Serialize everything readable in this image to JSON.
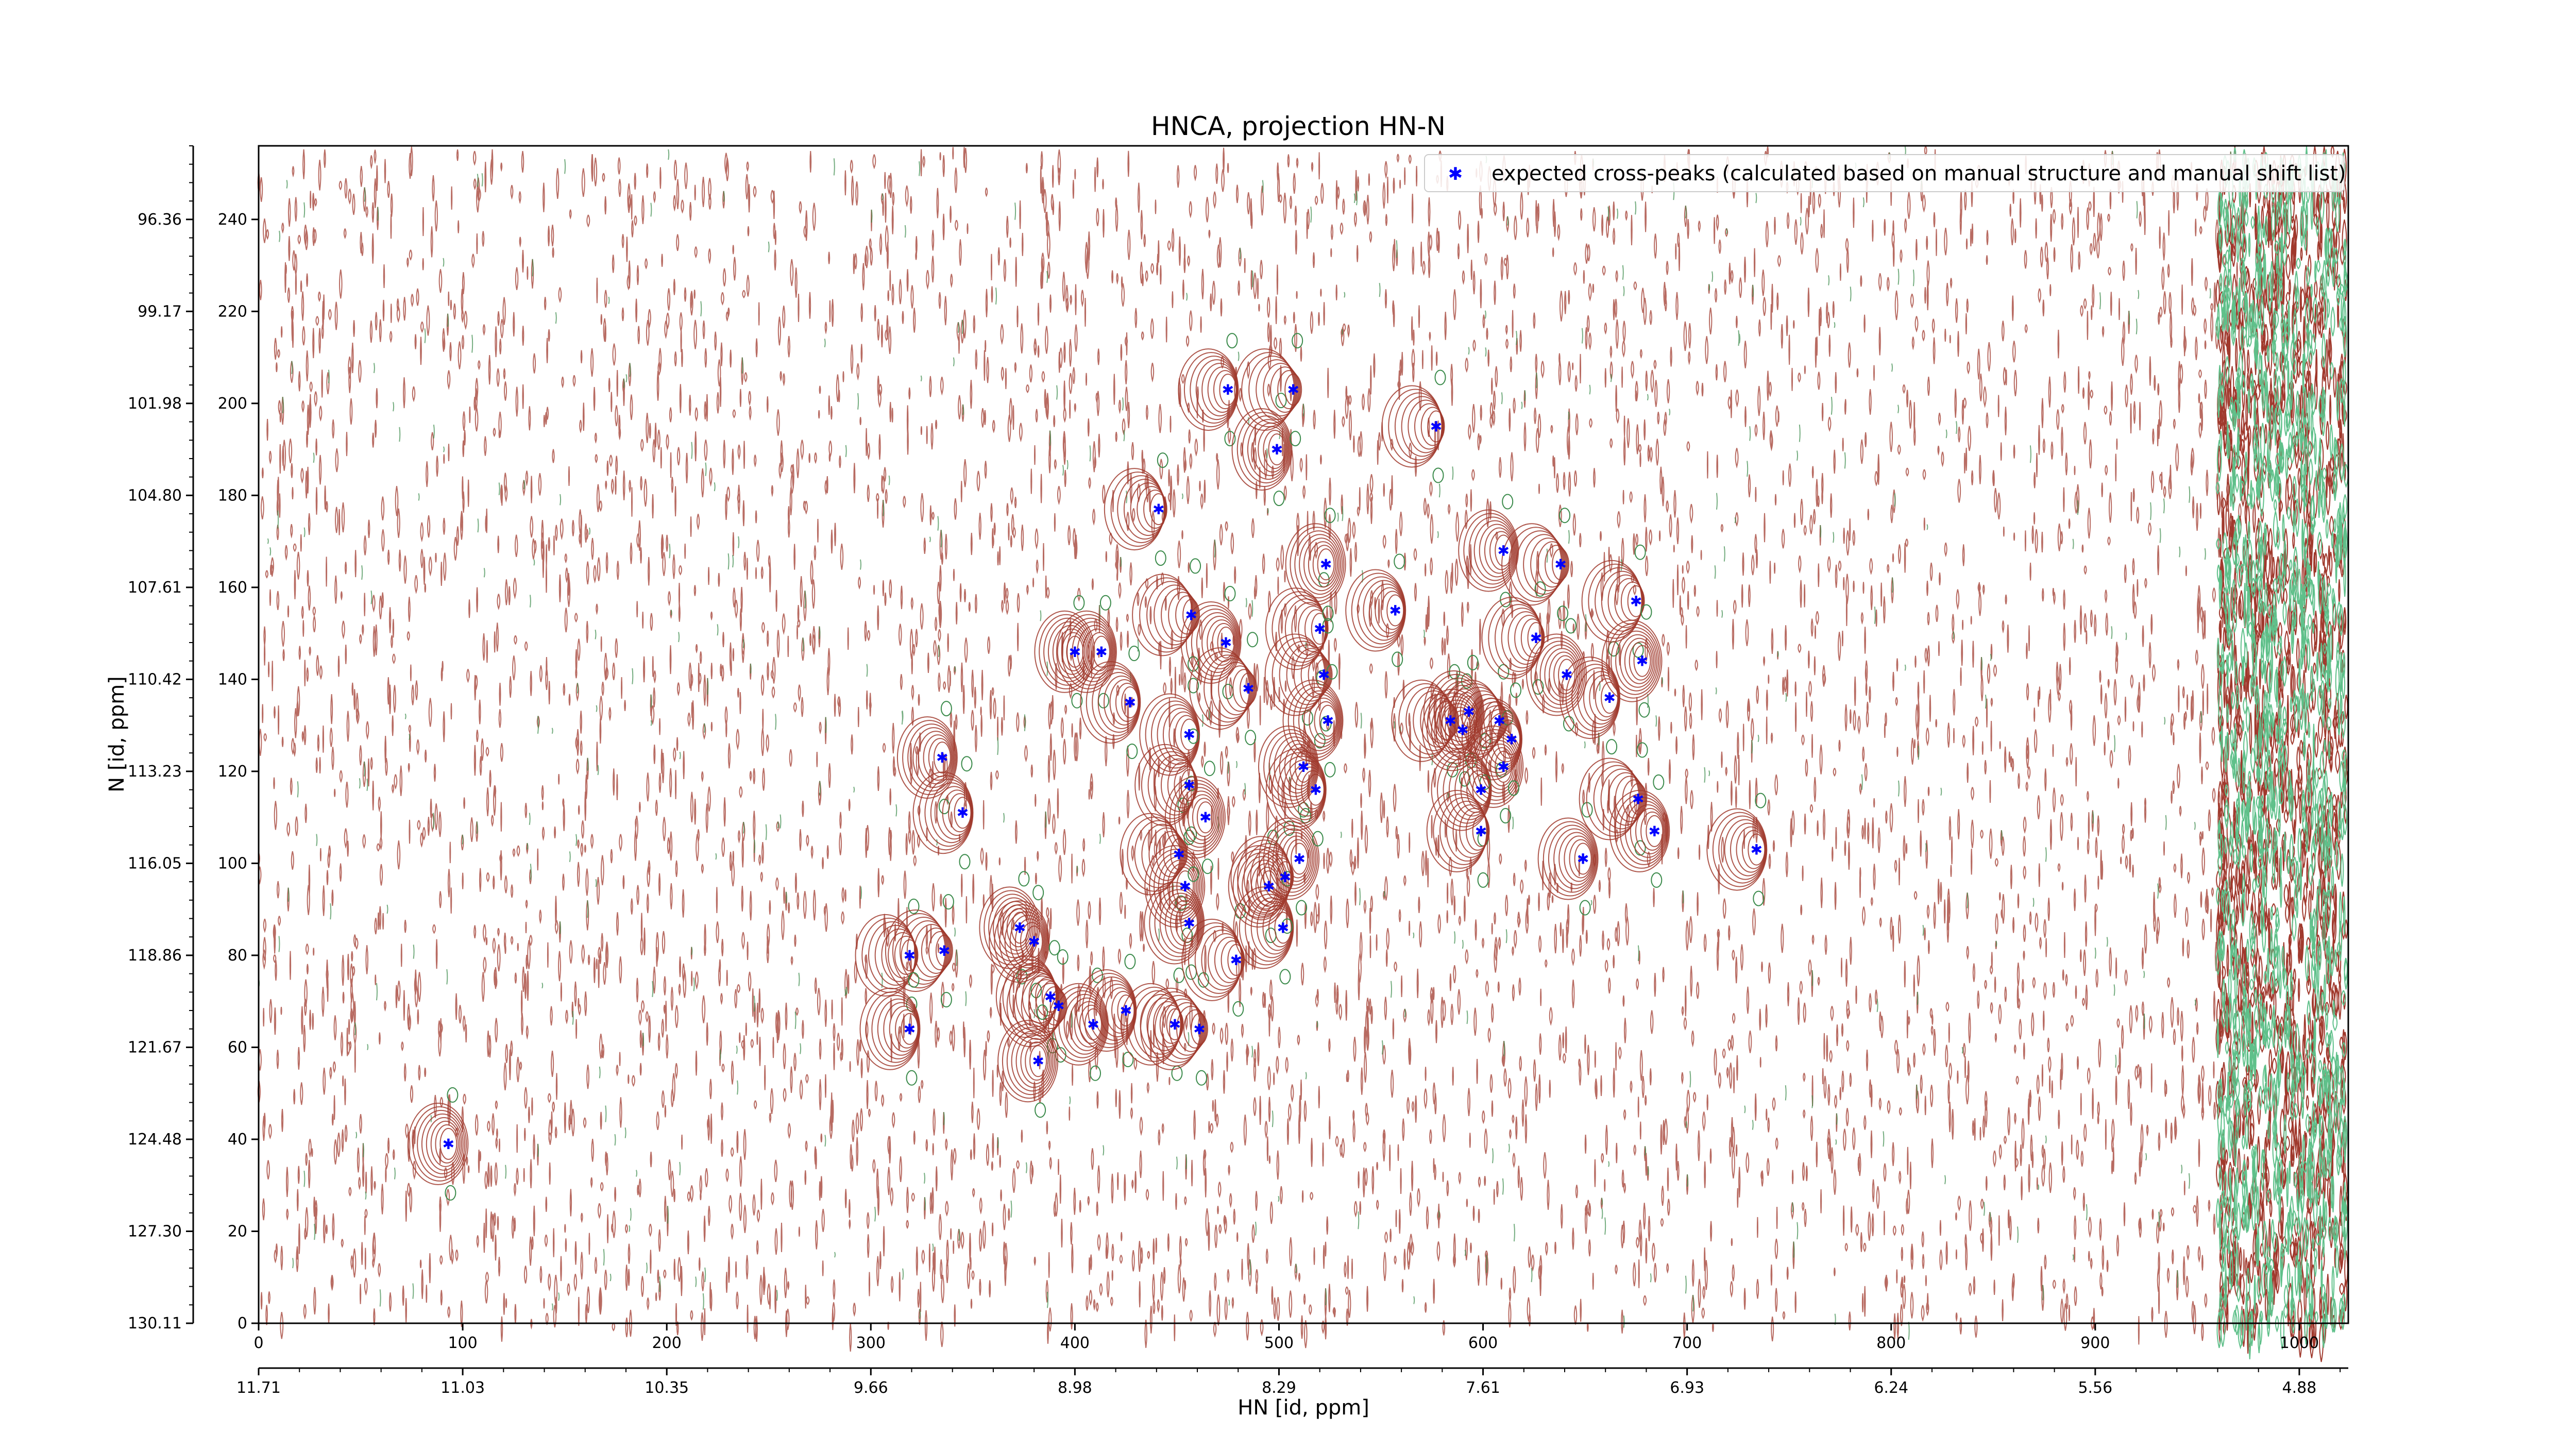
{
  "chart_data": {
    "type": "scatter",
    "title": "HNCA, projection HN-N",
    "xlabel": "HN [id, ppm]",
    "ylabel": "N [id, ppm]",
    "xlim": [
      0,
      1024
    ],
    "ylim": [
      0,
      256
    ],
    "x_ticks": [
      0,
      100,
      200,
      300,
      400,
      500,
      600,
      700,
      800,
      900,
      1000
    ],
    "y_ticks": [
      0,
      20,
      40,
      60,
      80,
      100,
      120,
      140,
      160,
      180,
      200,
      220,
      240
    ],
    "x_ppm_ticks": [
      "11.71",
      "11.03",
      "10.35",
      "9.66",
      "8.98",
      "8.29",
      "7.61",
      "6.93",
      "6.24",
      "5.56",
      "4.88"
    ],
    "y_ppm_ticks": [
      "130.11",
      "127.30",
      "124.48",
      "121.67",
      "118.86",
      "116.05",
      "113.23",
      "110.42",
      "107.61",
      "104.80",
      "101.98",
      "99.17",
      "96.36"
    ],
    "legend": {
      "placement": "top-right"
    },
    "colors": {
      "positive_contour": "#a0392d",
      "negative_contour": "#3a8a4a",
      "marker": "#0000ff"
    },
    "series": [
      {
        "name": "expected cross-peaks (calculated based on manual structure and manual shift list)",
        "points": [
          [
            93,
            39
          ],
          [
            335,
            123
          ],
          [
            345,
            111
          ],
          [
            319,
            80
          ],
          [
            336,
            81
          ],
          [
            373,
            86
          ],
          [
            380,
            83
          ],
          [
            319,
            64
          ],
          [
            388,
            71
          ],
          [
            392,
            69
          ],
          [
            382,
            57
          ],
          [
            409,
            65
          ],
          [
            425,
            68
          ],
          [
            449,
            65
          ],
          [
            461,
            64
          ],
          [
            400,
            146
          ],
          [
            413,
            146
          ],
          [
            427,
            135
          ],
          [
            441,
            177
          ],
          [
            451,
            102
          ],
          [
            454,
            95
          ],
          [
            456,
            87
          ],
          [
            456,
            128
          ],
          [
            456,
            117
          ],
          [
            457,
            154
          ],
          [
            464,
            110
          ],
          [
            474,
            148
          ],
          [
            475,
            203
          ],
          [
            479,
            79
          ],
          [
            485,
            138
          ],
          [
            495,
            95
          ],
          [
            499,
            190
          ],
          [
            502,
            86
          ],
          [
            503,
            97
          ],
          [
            507,
            203
          ],
          [
            510,
            101
          ],
          [
            512,
            121
          ],
          [
            518,
            116
          ],
          [
            520,
            151
          ],
          [
            522,
            141
          ],
          [
            523,
            165
          ],
          [
            524,
            131
          ],
          [
            557,
            155
          ],
          [
            577,
            195
          ],
          [
            584,
            131
          ],
          [
            590,
            129
          ],
          [
            593,
            133
          ],
          [
            599,
            116
          ],
          [
            599,
            107
          ],
          [
            608,
            131
          ],
          [
            610,
            121
          ],
          [
            610,
            168
          ],
          [
            614,
            127
          ],
          [
            626,
            149
          ],
          [
            638,
            165
          ],
          [
            641,
            141
          ],
          [
            649,
            101
          ],
          [
            662,
            136
          ],
          [
            675,
            157
          ],
          [
            676,
            114
          ],
          [
            678,
            144
          ],
          [
            684,
            107
          ],
          [
            734,
            103
          ]
        ]
      }
    ]
  }
}
